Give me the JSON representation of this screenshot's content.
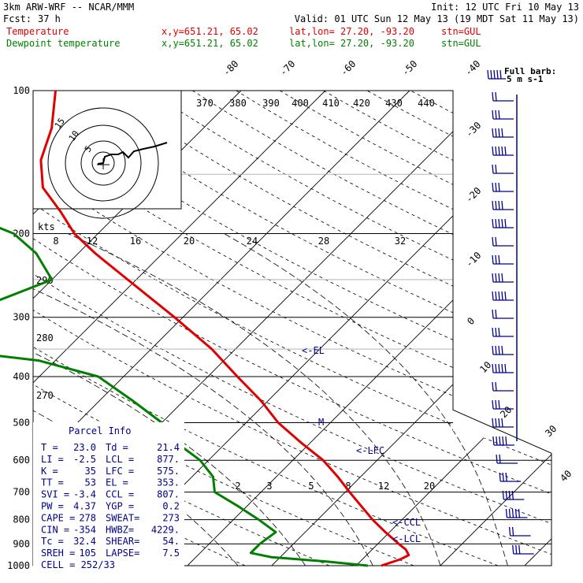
{
  "header": {
    "model": "3km ARW-WRF -- NCAR/MMM",
    "init": "Init: 12 UTC Fri 10 May 13",
    "fcst_label": "Fcst:",
    "fcst_value": "37 h",
    "valid": "Valid: 01 UTC Sun 12 May 13 (19 MDT Sat 11 May 13)",
    "temp_label": "Temperature",
    "dew_label": "Dewpoint temperature",
    "loc_xy": "x,y=651.21, 65.02",
    "loc_latlon": "lat,lon= 27.20, -93.20",
    "loc_stn": "stn=GUL"
  },
  "colors": {
    "temperature": "#e00000",
    "dewpoint": "#008000",
    "wind": "#00008c",
    "hodograph": "#000000"
  },
  "chart_data": {
    "type": "line",
    "chart_kind": "skew-T log-P sounding",
    "y_axis": {
      "scale": "log",
      "range": [
        1000,
        100
      ],
      "pressure_levels": [
        "100",
        "200",
        "300",
        "400",
        "500",
        "600",
        "700",
        "800",
        "900",
        "1000"
      ]
    },
    "x_skew_isotherms_degC": [
      "-80",
      "-70",
      "-60",
      "-50",
      "-40",
      "-30",
      "-20",
      "-10",
      "0",
      "10",
      "20",
      "30",
      "40"
    ],
    "theta_labels_K": [
      "370",
      "380",
      "390",
      "400",
      "410",
      "420",
      "430",
      "440"
    ],
    "theta_side_labels_K": [
      "290",
      "280",
      "270"
    ],
    "mixing_ratio_labels": [
      "2",
      "3",
      "5",
      "8",
      "12",
      "20"
    ],
    "kts_label": "kts",
    "speed_scale_kts": [
      "8",
      "12",
      "16",
      "20",
      "24",
      "28",
      "32"
    ],
    "series": [
      {
        "name": "Temperature",
        "points_p_T": [
          [
            1000,
            23.0
          ],
          [
            970,
            24.5
          ],
          [
            950,
            25.0
          ],
          [
            925,
            24.0
          ],
          [
            900,
            22.5
          ],
          [
            850,
            19.5
          ],
          [
            800,
            16.5
          ],
          [
            750,
            13.6
          ],
          [
            700,
            10.5
          ],
          [
            650,
            7.3
          ],
          [
            600,
            3.6
          ],
          [
            550,
            -1.2
          ],
          [
            500,
            -6.2
          ],
          [
            450,
            -10.8
          ],
          [
            400,
            -16.5
          ],
          [
            350,
            -22.8
          ],
          [
            300,
            -31.0
          ],
          [
            250,
            -41.0
          ],
          [
            220,
            -48.0
          ],
          [
            200,
            -52.8
          ],
          [
            180,
            -57.0
          ],
          [
            160,
            -62.0
          ],
          [
            140,
            -65.5
          ],
          [
            120,
            -68.0
          ],
          [
            100,
            -72.0
          ]
        ]
      },
      {
        "name": "Dewpoint temperature",
        "points_p_T": [
          [
            1000,
            21.4
          ],
          [
            980,
            16.0
          ],
          [
            960,
            9.0
          ],
          [
            940,
            6.0
          ],
          [
            900,
            6.0
          ],
          [
            850,
            6.5
          ],
          [
            800,
            3.0
          ],
          [
            750,
            -1.0
          ],
          [
            700,
            -5.5
          ],
          [
            650,
            -7.5
          ],
          [
            600,
            -11.0
          ],
          [
            550,
            -16.0
          ],
          [
            500,
            -20.0
          ],
          [
            450,
            -26.0
          ],
          [
            400,
            -33.0
          ],
          [
            370,
            -42.0
          ],
          [
            350,
            -55.0
          ],
          [
            320,
            -58.0
          ],
          [
            300,
            -57.0
          ],
          [
            250,
            -50.0
          ],
          [
            220,
            -55.0
          ],
          [
            200,
            -60.0
          ],
          [
            180,
            -69.0
          ],
          [
            160,
            -78.0
          ],
          [
            140,
            -80.0
          ],
          [
            120,
            -80.0
          ],
          [
            100,
            -84.0
          ]
        ]
      }
    ],
    "annotations": [
      "<-EL",
      "<-LFC",
      "<-CCL",
      "<-LCL",
      "M"
    ],
    "wind_barb_title": "Full barb:",
    "wind_barb_units": "5 m s-1"
  },
  "parcel": {
    "title": "Parcel Info",
    "rows": [
      {
        "a": "T   =",
        "av": "23.0",
        "b": "Td =",
        "bv": "21.4"
      },
      {
        "a": "LI  =",
        "av": "-2.5",
        "b": "LCL =",
        "bv": "877."
      },
      {
        "a": "K   =",
        "av": "35",
        "b": "LFC =",
        "bv": "575."
      },
      {
        "a": "TT  =",
        "av": "53",
        "b": "EL  =",
        "bv": "353."
      },
      {
        "a": "SVI =",
        "av": "-3.4",
        "b": "CCL =",
        "bv": "807."
      },
      {
        "a": "PW  =",
        "av": "4.37",
        "b": "YGP =",
        "bv": "0.2"
      },
      {
        "a": "CAPE =",
        "av": "278",
        "b": "SWEAT=",
        "bv": "273"
      },
      {
        "a": "CIN  =",
        "av": "-354",
        "b": "HWBZ=",
        "bv": "4229."
      },
      {
        "a": "Tc  =",
        "av": "32.4",
        "b": "SHEAR=",
        "bv": "54."
      },
      {
        "a": "SREH =",
        "av": "105",
        "b": "LAPSE=",
        "bv": "7.5"
      }
    ],
    "cell": "CELL = 252/33"
  },
  "hodograph": {
    "ring_labels": [
      "15",
      "10",
      "5"
    ]
  }
}
